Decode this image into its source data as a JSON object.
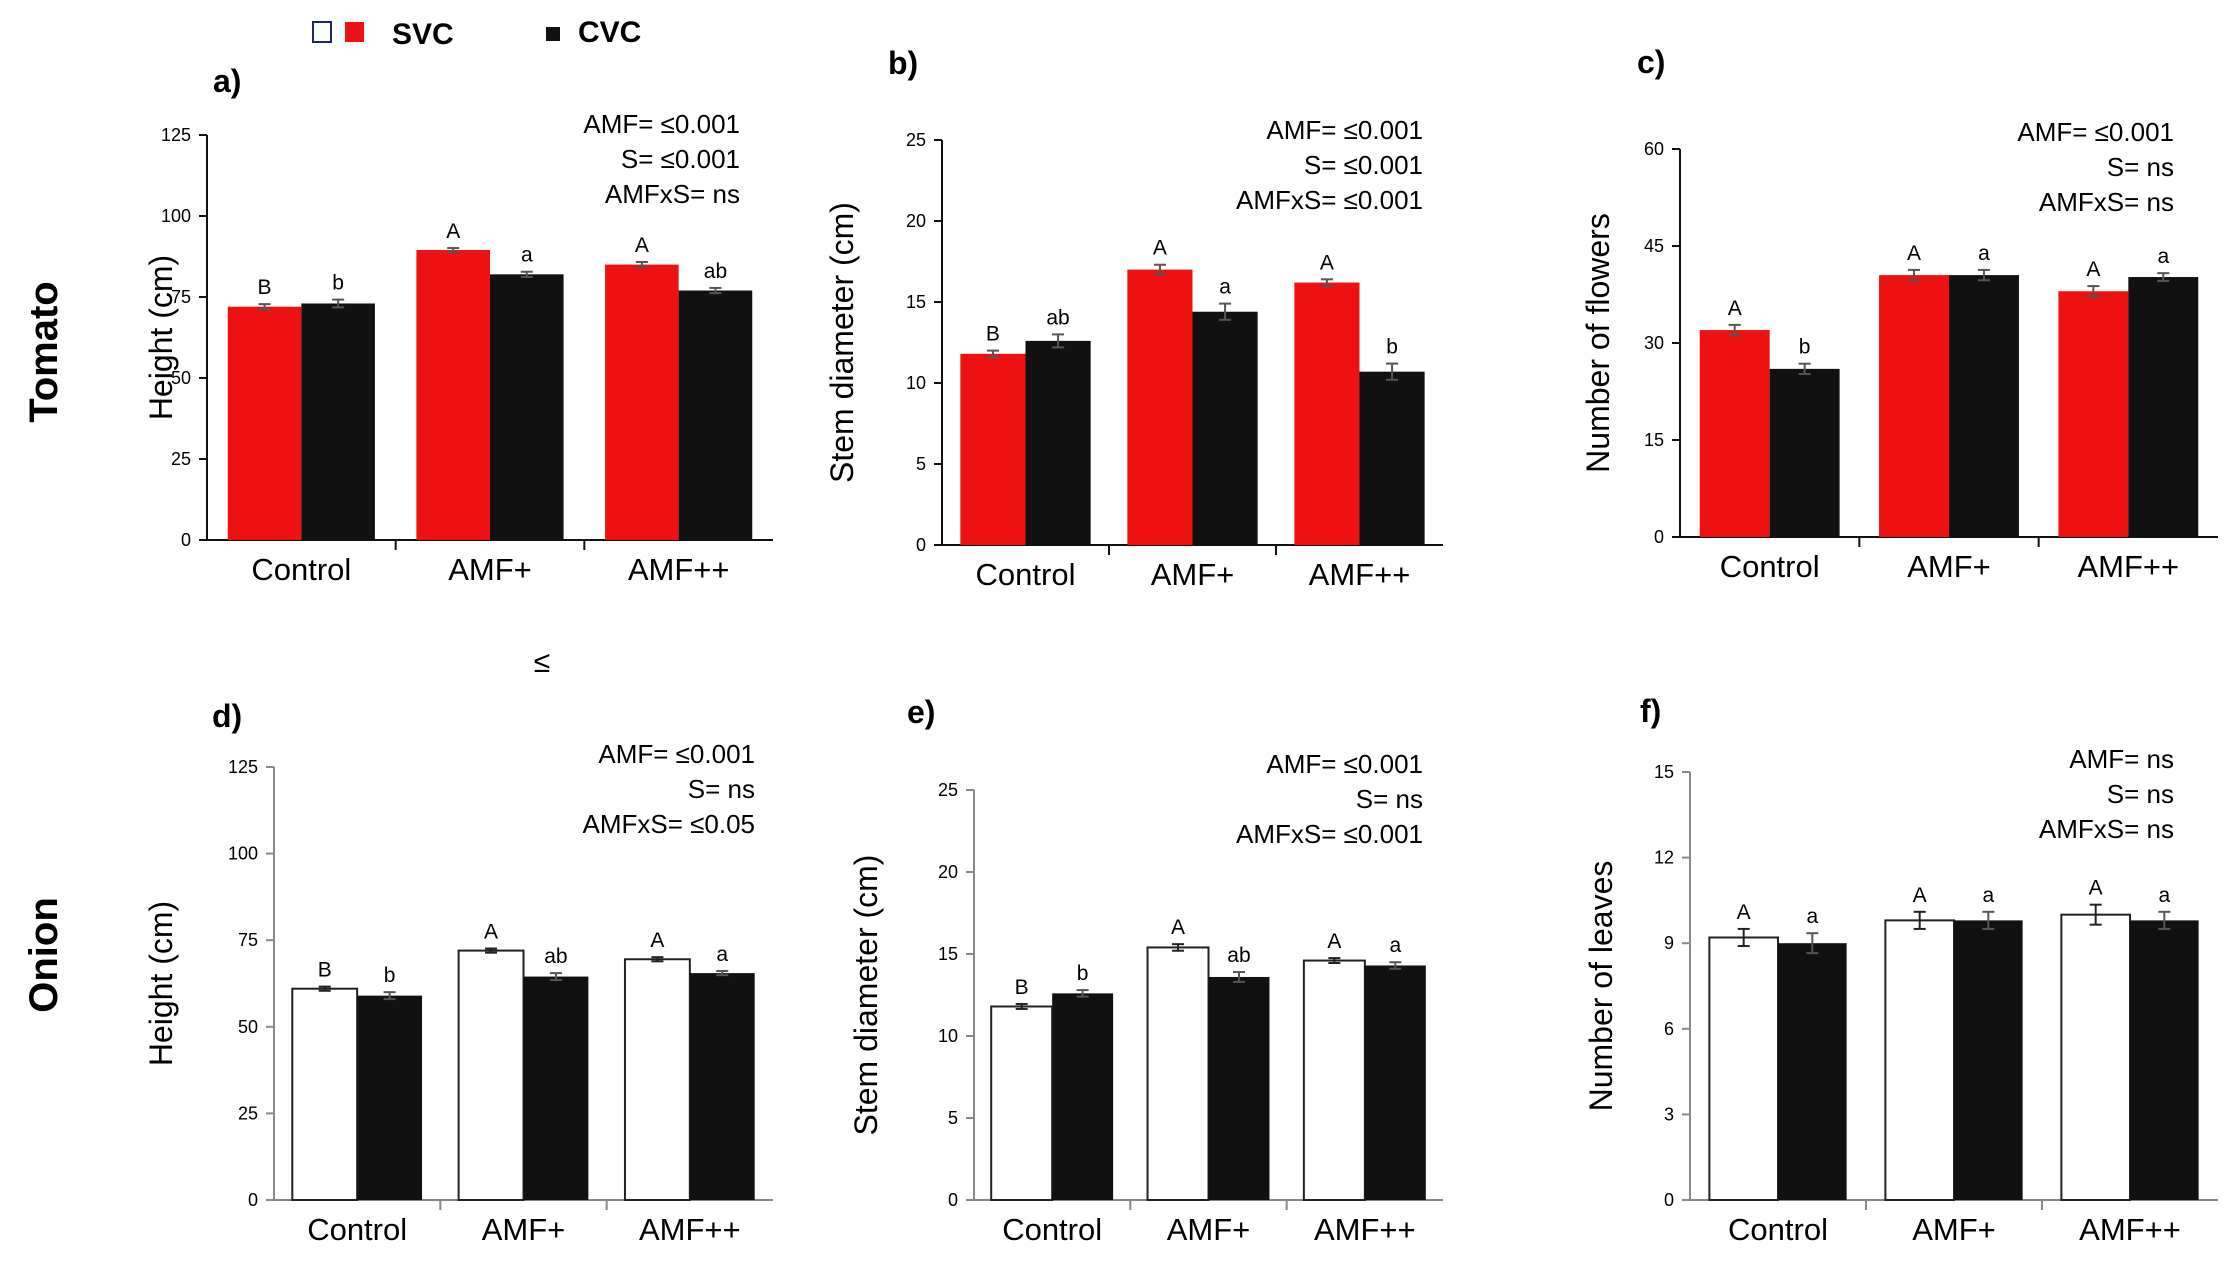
{
  "legend": {
    "svc_label": "SVC",
    "cvc_label": "CVC",
    "svc_tomato_color": "#ee1111",
    "svc_onion_color": "#ffffff",
    "cvc_color": "#111111"
  },
  "row_labels": {
    "tomato": "Tomato",
    "onion": "Onion"
  },
  "stray_symbol": "≤",
  "chart_data": [
    {
      "panel": "a)",
      "type": "bar",
      "row": "tomato",
      "ylabel": "Height (cm)",
      "ylim": [
        0,
        125
      ],
      "yticks": [
        "0",
        "25",
        "50",
        "75",
        "100",
        "125"
      ],
      "categories": [
        "Control",
        "AMF+",
        "AMF++"
      ],
      "series": [
        {
          "name": "SVC",
          "color": "#ee1111",
          "values": [
            72,
            89.5,
            85
          ],
          "errors": [
            0.8,
            0.6,
            0.8
          ],
          "labels": [
            "B",
            "A",
            "A"
          ]
        },
        {
          "name": "CVC",
          "color": "#111111",
          "values": [
            73,
            82,
            77
          ],
          "errors": [
            1.2,
            0.8,
            0.8
          ],
          "labels": [
            "b",
            "a",
            "ab"
          ]
        }
      ],
      "stats": [
        "AMF= ≤0.001",
        "S= ≤0.001",
        "AMFxS= ns"
      ]
    },
    {
      "panel": "b)",
      "type": "bar",
      "row": "tomato",
      "ylabel": "Stem diameter (cm)",
      "ylim": [
        0,
        25
      ],
      "yticks": [
        "0",
        "5",
        "10",
        "15",
        "20",
        "25"
      ],
      "categories": [
        "Control",
        "AMF+",
        "AMF++"
      ],
      "series": [
        {
          "name": "SVC",
          "color": "#ee1111",
          "values": [
            11.8,
            17,
            16.2
          ],
          "errors": [
            0.2,
            0.3,
            0.2
          ],
          "labels": [
            "B",
            "A",
            "A"
          ]
        },
        {
          "name": "CVC",
          "color": "#111111",
          "values": [
            12.6,
            14.4,
            10.7
          ],
          "errors": [
            0.4,
            0.5,
            0.5
          ],
          "labels": [
            "ab",
            "a",
            "b"
          ]
        }
      ],
      "stats": [
        "AMF= ≤0.001",
        "S= ≤0.001",
        "AMFxS= ≤0.001"
      ]
    },
    {
      "panel": "c)",
      "type": "bar",
      "row": "tomato",
      "ylabel": "Number of flowers",
      "ylim": [
        0,
        60
      ],
      "yticks": [
        "0",
        "15",
        "30",
        "45",
        "60"
      ],
      "categories": [
        "Control",
        "AMF+",
        "AMF++"
      ],
      "series": [
        {
          "name": "SVC",
          "color": "#ee1111",
          "values": [
            32,
            40.5,
            38
          ],
          "errors": [
            0.8,
            0.8,
            0.8
          ],
          "labels": [
            "A",
            "A",
            "A"
          ]
        },
        {
          "name": "CVC",
          "color": "#111111",
          "values": [
            26,
            40.5,
            40.2
          ],
          "errors": [
            0.8,
            0.8,
            0.6
          ],
          "labels": [
            "b",
            "a",
            "a"
          ]
        }
      ],
      "stats": [
        "AMF= ≤0.001",
        "S= ns",
        "AMFxS= ns"
      ]
    },
    {
      "panel": "d)",
      "type": "bar",
      "row": "onion",
      "ylabel": "Height (cm)",
      "ylim": [
        0,
        125
      ],
      "yticks": [
        "0",
        "25",
        "50",
        "75",
        "100",
        "125"
      ],
      "categories": [
        "Control",
        "AMF+",
        "AMF++"
      ],
      "series": [
        {
          "name": "SVC",
          "color": "#ffffff",
          "values": [
            61,
            72,
            69.5
          ],
          "errors": [
            0.6,
            0.6,
            0.6
          ],
          "labels": [
            "B",
            "A",
            "A"
          ]
        },
        {
          "name": "CVC",
          "color": "#111111",
          "values": [
            59,
            64.5,
            65.5
          ],
          "errors": [
            1.0,
            1.0,
            0.6
          ],
          "labels": [
            "b",
            "ab",
            "a"
          ]
        }
      ],
      "stats": [
        "AMF= ≤0.001",
        "S= ns",
        "AMFxS= ≤0.05"
      ]
    },
    {
      "panel": "e)",
      "type": "bar",
      "row": "onion",
      "ylabel": "Stem diameter (cm)",
      "ylim": [
        0,
        25
      ],
      "yticks": [
        "0",
        "5",
        "10",
        "15",
        "20",
        "25"
      ],
      "categories": [
        "Control",
        "AMF+",
        "AMF++"
      ],
      "series": [
        {
          "name": "SVC",
          "color": "#ffffff",
          "values": [
            11.8,
            15.4,
            14.6
          ],
          "errors": [
            0.15,
            0.2,
            0.15
          ],
          "labels": [
            "B",
            "A",
            "A"
          ]
        },
        {
          "name": "CVC",
          "color": "#111111",
          "values": [
            12.6,
            13.6,
            14.3
          ],
          "errors": [
            0.2,
            0.3,
            0.2
          ],
          "labels": [
            "b",
            "ab",
            "a"
          ]
        }
      ],
      "stats": [
        "AMF= ≤0.001",
        "S= ns",
        "AMFxS= ≤0.001"
      ]
    },
    {
      "panel": "f)",
      "type": "bar",
      "row": "onion",
      "ylabel": "Number of leaves",
      "ylim": [
        0,
        15
      ],
      "yticks": [
        "0",
        "3",
        "6",
        "9",
        "12",
        "15"
      ],
      "categories": [
        "Control",
        "AMF+",
        "AMF++"
      ],
      "series": [
        {
          "name": "SVC",
          "color": "#ffffff",
          "values": [
            9.2,
            9.8,
            10
          ],
          "errors": [
            0.3,
            0.3,
            0.35
          ],
          "labels": [
            "A",
            "A",
            "A"
          ]
        },
        {
          "name": "CVC",
          "color": "#111111",
          "values": [
            9,
            9.8,
            9.8
          ],
          "errors": [
            0.35,
            0.3,
            0.3
          ],
          "labels": [
            "a",
            "a",
            "a"
          ]
        }
      ],
      "stats": [
        "AMF= ns",
        "S= ns",
        "AMFxS= ns"
      ]
    }
  ]
}
